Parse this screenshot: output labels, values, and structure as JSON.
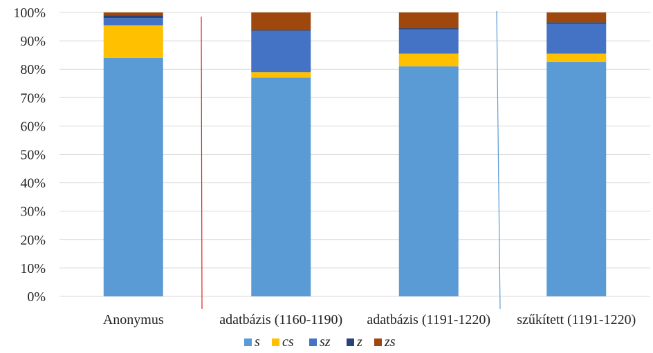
{
  "chart_data": {
    "type": "bar",
    "stacked": true,
    "percent_stacked": true,
    "categories": [
      "Anonymus",
      "adatbázis (1160-1190)",
      "adatbázis (1191-1220)",
      "szűkített (1191-1220)"
    ],
    "series": [
      {
        "name": "s",
        "color": "#5b9bd5",
        "values": [
          84,
          77,
          81,
          82.5
        ]
      },
      {
        "name": "cs",
        "color": "#ffc000",
        "values": [
          11.5,
          2,
          4.5,
          3
        ]
      },
      {
        "name": "sz",
        "color": "#4472c4",
        "values": [
          2.5,
          14.5,
          8.5,
          10.5
        ]
      },
      {
        "name": "z",
        "color": "#264478",
        "values": [
          1,
          0.3,
          0.5,
          0.5
        ]
      },
      {
        "name": "zs",
        "color": "#9e480e",
        "values": [
          1,
          6.2,
          5.5,
          3.5
        ]
      }
    ],
    "y_ticks": [
      "0%",
      "10%",
      "20%",
      "30%",
      "40%",
      "50%",
      "60%",
      "70%",
      "80%",
      "90%",
      "100%"
    ],
    "ylim": [
      0,
      100
    ],
    "grid": true,
    "legend_position": "bottom",
    "title": "",
    "xlabel": "",
    "ylabel": "",
    "divider_colors": [
      "#e02020",
      "#5b9bd5"
    ]
  }
}
